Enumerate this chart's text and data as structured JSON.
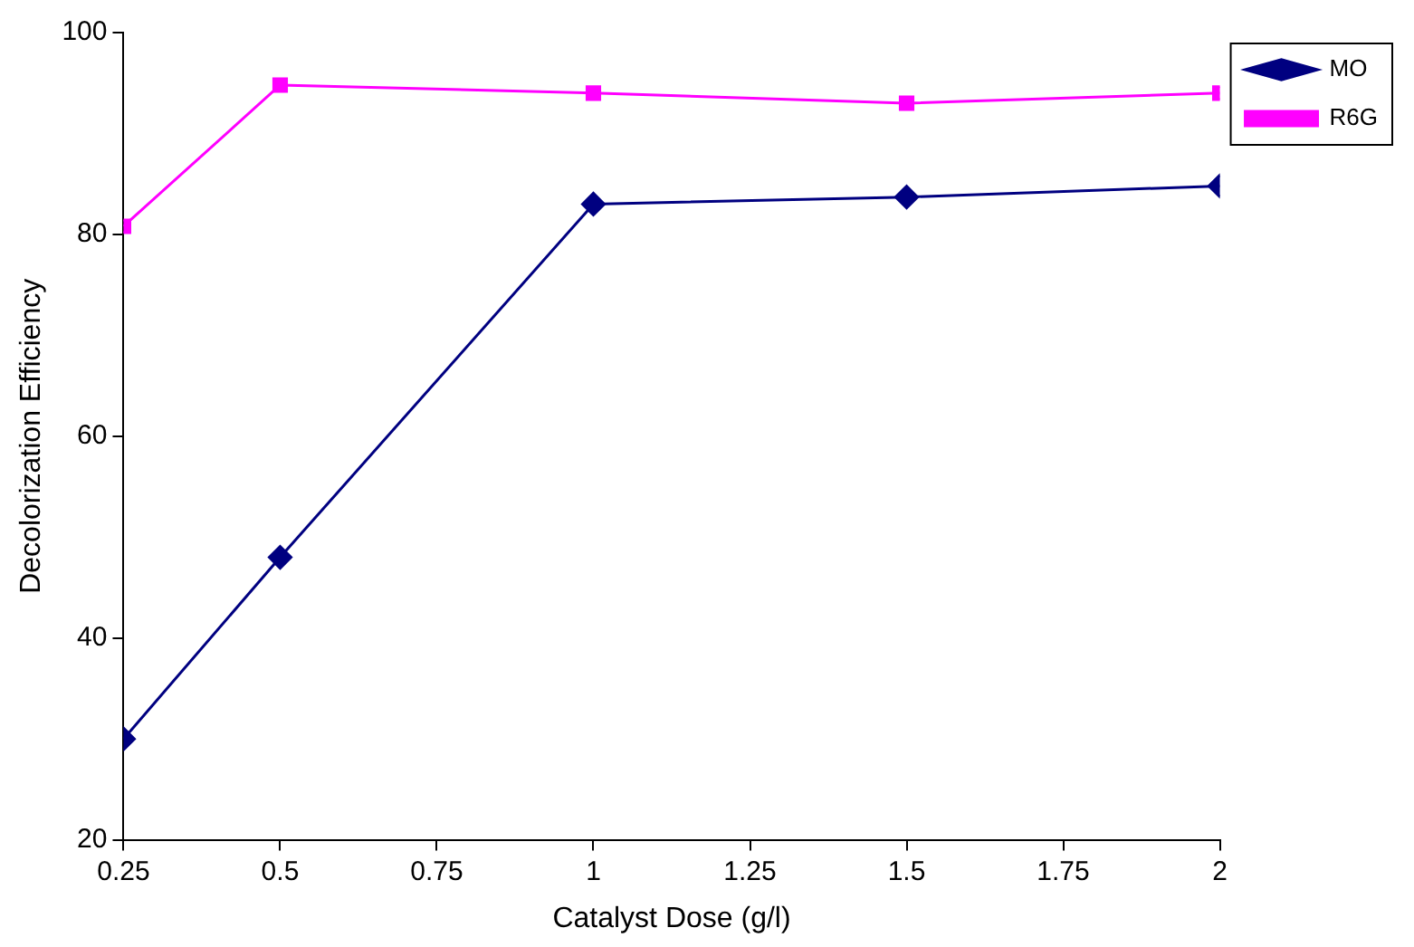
{
  "chart_data": {
    "type": "line",
    "xlabel": "Catalyst Dose (g/l)",
    "ylabel": "Decolorization Efficiency",
    "x": [
      0.25,
      0.5,
      1,
      1.5,
      2
    ],
    "series": [
      {
        "name": "MO",
        "color": "#000080",
        "marker": "diamond",
        "values": [
          30,
          48,
          83,
          83.7,
          84.8
        ]
      },
      {
        "name": "R6G",
        "color": "#ff00ff",
        "marker": "square",
        "values": [
          80.8,
          94.8,
          94,
          93,
          94
        ]
      }
    ],
    "xlim": [
      0.25,
      2
    ],
    "xticks": [
      0.25,
      0.5,
      0.75,
      1,
      1.25,
      1.5,
      1.75,
      2
    ],
    "ylim": [
      20,
      100
    ],
    "yticks": [
      20,
      40,
      60,
      80,
      100
    ],
    "grid": false,
    "legend": "top right",
    "line_style": "solid"
  }
}
